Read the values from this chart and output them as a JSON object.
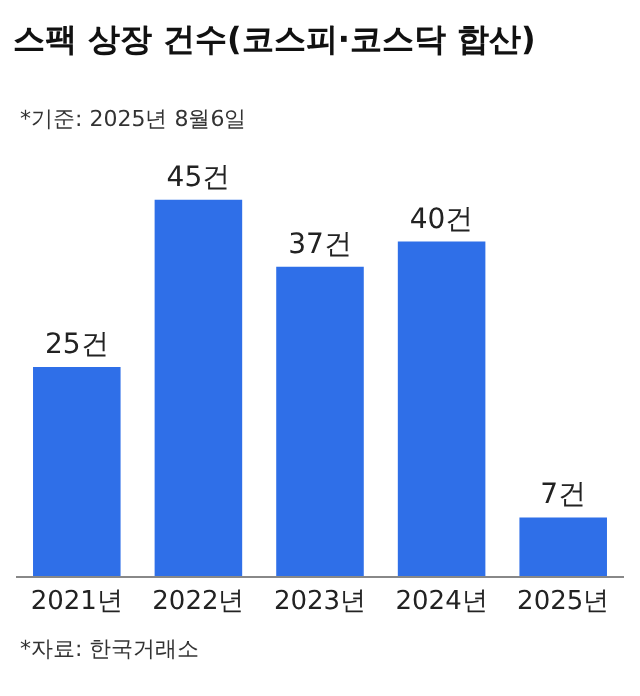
{
  "chart_data": {
    "type": "bar",
    "title": "스팩 상장 건수(코스피·코스닥 합산)",
    "subtitle": "*기준: 2025년 8월6일",
    "categories": [
      "2021년",
      "2022년",
      "2023년",
      "2024년",
      "2025년"
    ],
    "values": [
      25,
      45,
      37,
      40,
      7
    ],
    "value_labels": [
      "25건",
      "45건",
      "37건",
      "40건",
      "7건"
    ],
    "color": "#2f6fe8",
    "annotations": [
      "*자료: 한국거래소"
    ]
  }
}
